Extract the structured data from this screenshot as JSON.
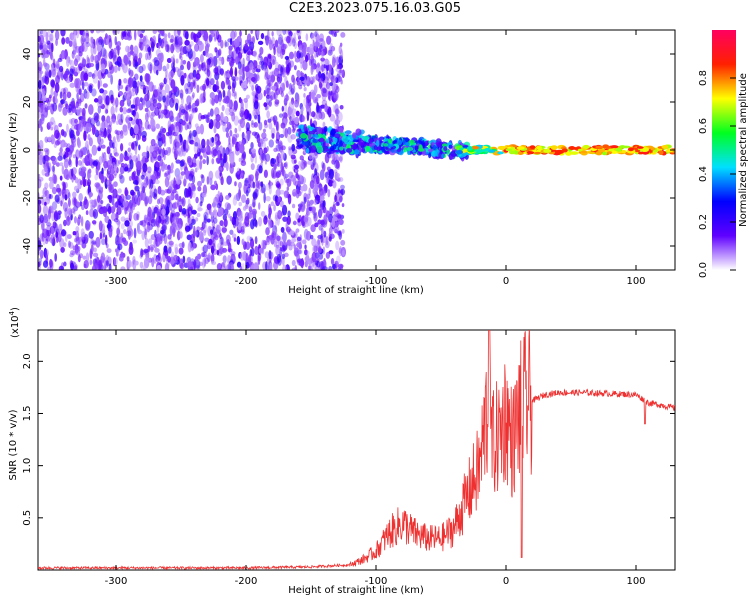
{
  "title": "C2E3.2023.075.16.03.G05",
  "chart_data": [
    {
      "type": "heatmap",
      "xlabel": "Height of straight line (km)",
      "ylabel": "Frequency (Hz)",
      "xlim": [
        -360,
        130
      ],
      "ylim": [
        -50,
        50
      ],
      "xticks": [
        -300,
        -200,
        -100,
        0,
        100
      ],
      "yticks": [
        -40,
        -20,
        0,
        20,
        40
      ],
      "colorbar": {
        "label": "Normalized spectral amplitude",
        "range": [
          0.0,
          1.0
        ],
        "ticks": [
          0.0,
          0.2,
          0.4,
          0.6,
          0.8
        ],
        "colors": [
          "#ffffff",
          "#5f00ff",
          "#0000ff",
          "#00e0ff",
          "#00ff20",
          "#ffff00",
          "#ff2000",
          "#ff0060"
        ]
      }
    },
    {
      "type": "line",
      "xlabel": "Height of straight line (km)",
      "ylabel": "SNR (10 * v/v)",
      "yscale_label": "(x10",
      "yscale_exp": "4",
      "xlim": [
        -360,
        130
      ],
      "ylim": [
        0,
        2.3
      ],
      "xticks": [
        -300,
        -200,
        -100,
        0,
        100
      ],
      "yticks": [
        0.5,
        1.0,
        1.5,
        2.0
      ],
      "color": "#ee3030",
      "x": [
        -360,
        -300,
        -200,
        -150,
        -120,
        -110,
        -100,
        -90,
        -80,
        -70,
        -60,
        -50,
        -40,
        -30,
        -20,
        -15,
        -10,
        -5,
        0,
        5,
        10,
        15,
        20,
        30,
        40,
        60,
        80,
        100,
        110,
        120,
        130
      ],
      "y": [
        0.02,
        0.02,
        0.02,
        0.03,
        0.05,
        0.1,
        0.18,
        0.35,
        0.45,
        0.35,
        0.3,
        0.3,
        0.4,
        0.7,
        1.0,
        1.5,
        1.2,
        1.3,
        1.5,
        1.2,
        1.5,
        1.6,
        1.62,
        1.68,
        1.7,
        1.7,
        1.69,
        1.68,
        1.6,
        1.58,
        1.55
      ]
    }
  ]
}
